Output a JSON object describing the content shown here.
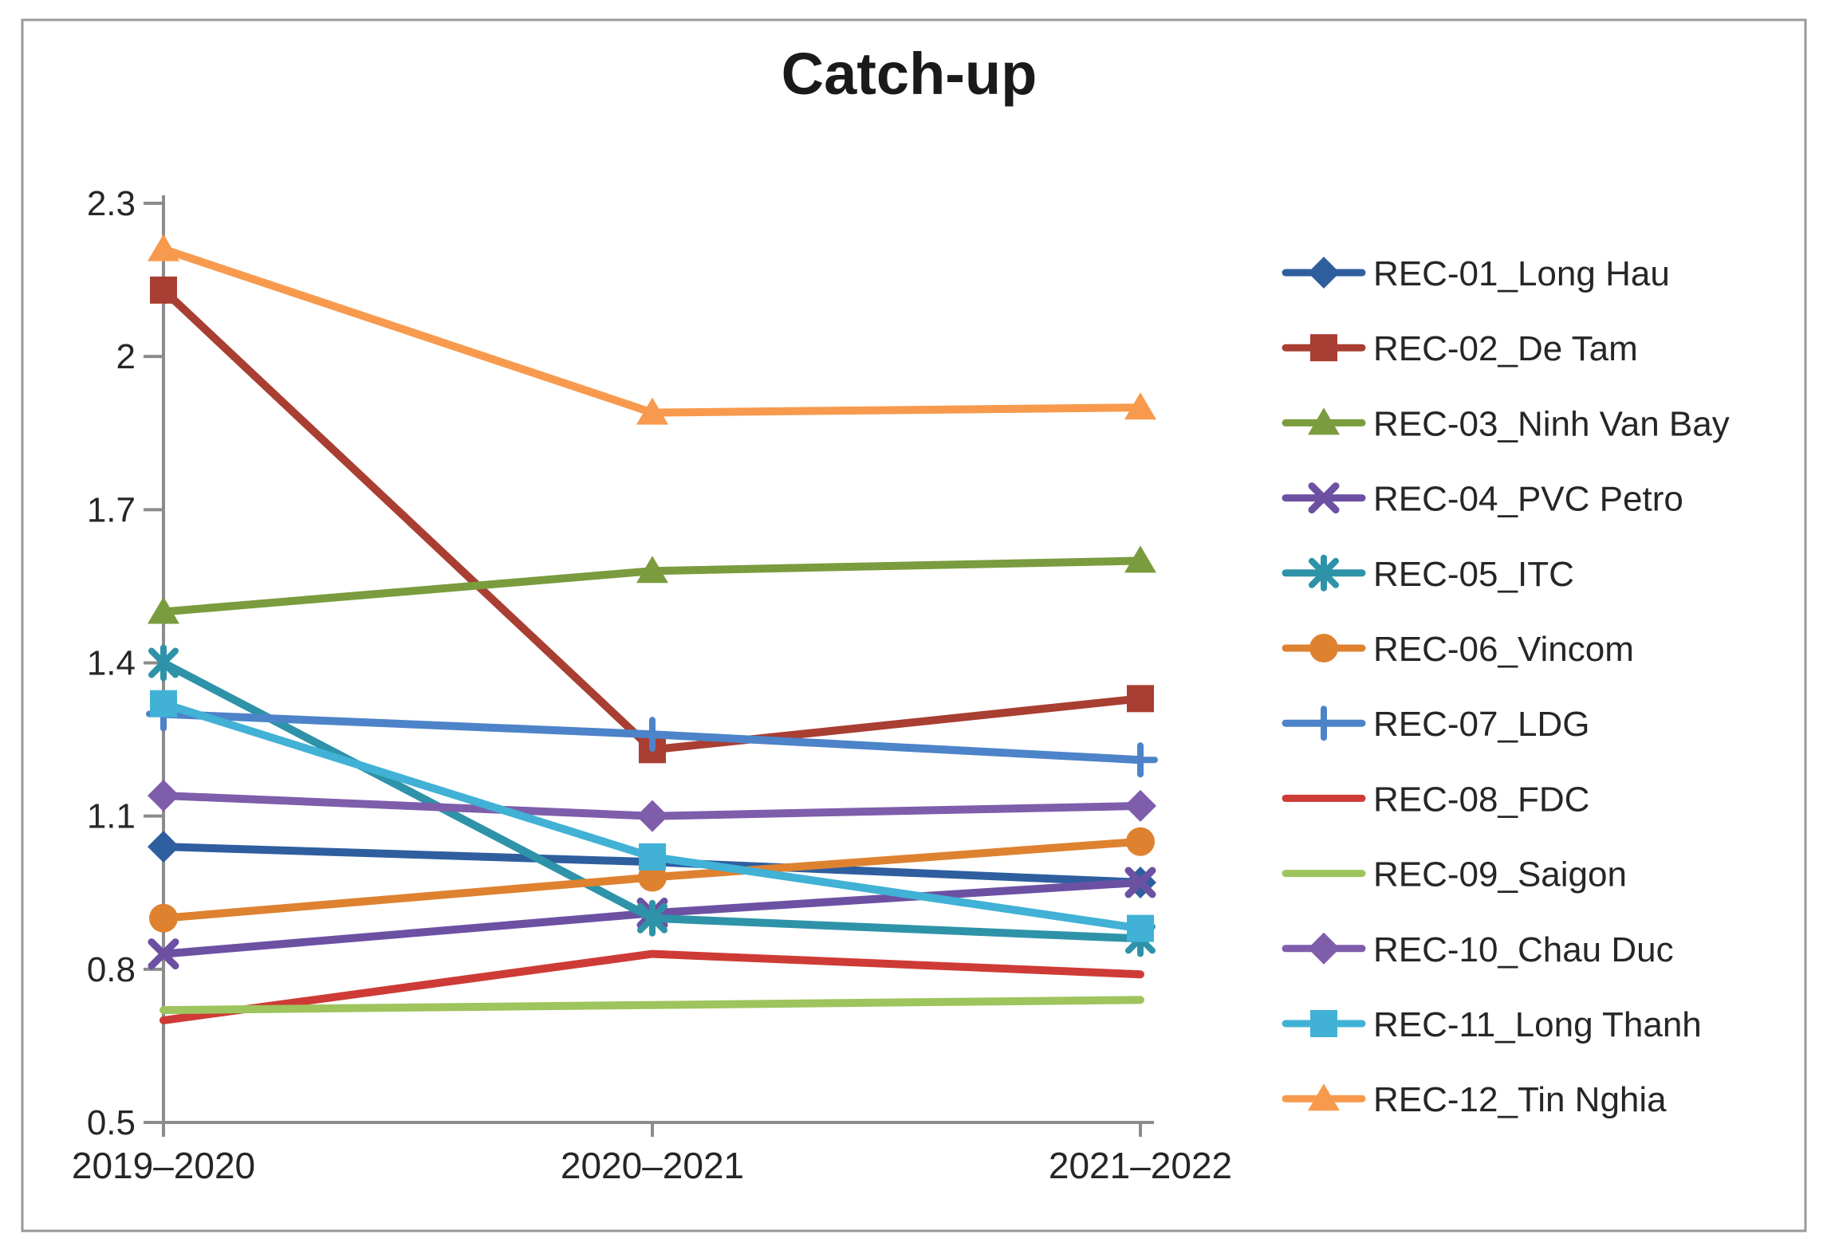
{
  "chart_data": {
    "type": "line",
    "title": "Catch-up",
    "categories": [
      "2019–2020",
      "2020–2021",
      "2021–2022"
    ],
    "y_ticks": [
      "2.3",
      "2",
      "1.7",
      "1.4",
      "1.1",
      "0.8",
      "0.5"
    ],
    "y_tick_values": [
      2.3,
      2.0,
      1.7,
      1.4,
      1.1,
      0.8,
      0.5
    ],
    "ylim": [
      0.5,
      2.3
    ],
    "grid": false,
    "legend_position": "right",
    "axis_color": "#8C8C8C",
    "text_color": "#262626",
    "title_color": "#1A1A1A",
    "series": [
      {
        "name": "REC-01_Long Hau",
        "color": "#2E5E9E",
        "marker": "diamond",
        "values": [
          1.04,
          1.01,
          0.97
        ]
      },
      {
        "name": "REC-02_De Tam",
        "color": "#A93E32",
        "marker": "square",
        "values": [
          2.13,
          1.23,
          1.33
        ]
      },
      {
        "name": "REC-03_Ninh Van Bay",
        "color": "#7A9C3E",
        "marker": "triangle",
        "values": [
          1.5,
          1.58,
          1.6
        ]
      },
      {
        "name": "REC-04_PVC Petro",
        "color": "#6C51A3",
        "marker": "x",
        "values": [
          0.83,
          0.91,
          0.97
        ]
      },
      {
        "name": "REC-05_ITC",
        "color": "#2E93A8",
        "marker": "asterisk",
        "values": [
          1.4,
          0.9,
          0.86
        ]
      },
      {
        "name": "REC-06_Vincom",
        "color": "#DE8230",
        "marker": "circle",
        "values": [
          0.9,
          0.98,
          1.05
        ]
      },
      {
        "name": "REC-07_LDG",
        "color": "#4D83C8",
        "marker": "plus",
        "values": [
          1.3,
          1.26,
          1.21
        ]
      },
      {
        "name": "REC-08_FDC",
        "color": "#CE3B36",
        "marker": "none",
        "values": [
          0.7,
          0.83,
          0.79
        ]
      },
      {
        "name": "REC-09_Saigon",
        "color": "#9EC45D",
        "marker": "none",
        "values": [
          0.72,
          0.73,
          0.74
        ]
      },
      {
        "name": "REC-10_Chau Duc",
        "color": "#7E5DAB",
        "marker": "diamond",
        "values": [
          1.14,
          1.1,
          1.12
        ]
      },
      {
        "name": "REC-11_Long Thanh",
        "color": "#41B1D5",
        "marker": "square",
        "values": [
          1.32,
          1.02,
          0.88
        ]
      },
      {
        "name": "REC-12_Tin Nghia",
        "color": "#F79A4D",
        "marker": "triangle",
        "values": [
          2.21,
          1.89,
          1.9
        ]
      }
    ]
  }
}
